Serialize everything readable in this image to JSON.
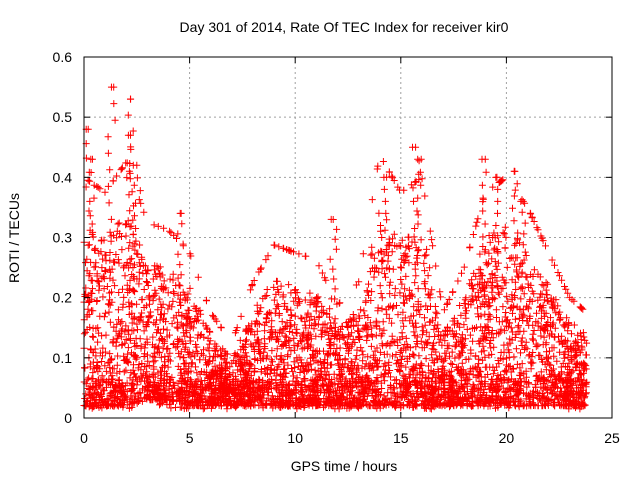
{
  "chart_data": {
    "type": "scatter",
    "title": "Day 301 of 2014, Rate Of TEC Index for receiver kir0",
    "xlabel": "GPS time / hours",
    "ylabel": "ROTI / TECUs",
    "xlim": [
      0,
      25
    ],
    "ylim": [
      0,
      0.6
    ],
    "x_ticks": [
      0,
      5,
      10,
      15,
      20,
      25
    ],
    "y_ticks": [
      0,
      0.1,
      0.2,
      0.3,
      0.4,
      0.5,
      0.6
    ],
    "x_tick_labels": [
      "0",
      "5",
      "10",
      "15",
      "20",
      "25"
    ],
    "y_tick_labels": [
      "0",
      "0.1",
      "0.2",
      "0.3",
      "0.4",
      "0.5",
      "0.6"
    ],
    "grid": true,
    "marker": "+",
    "series_color": "#ff0000",
    "x_data_range": [
      0,
      23.8
    ],
    "noted_peaks": [
      {
        "x": 0.2,
        "y": 0.48
      },
      {
        "x": 1.3,
        "y": 0.55
      },
      {
        "x": 2.2,
        "y": 0.53
      },
      {
        "x": 2.2,
        "y": 0.47
      },
      {
        "x": 0.4,
        "y": 0.43
      },
      {
        "x": 2.5,
        "y": 0.42
      },
      {
        "x": 4.6,
        "y": 0.34
      },
      {
        "x": 11.8,
        "y": 0.33
      },
      {
        "x": 14.2,
        "y": 0.4
      },
      {
        "x": 15.7,
        "y": 0.45
      },
      {
        "x": 15.8,
        "y": 0.43
      },
      {
        "x": 19.0,
        "y": 0.43
      },
      {
        "x": 19.5,
        "y": 0.4
      },
      {
        "x": 20.4,
        "y": 0.41
      },
      {
        "x": 20.8,
        "y": 0.36
      }
    ],
    "envelope": [
      {
        "x": 0.0,
        "upper": 0.32,
        "lower": 0.02
      },
      {
        "x": 1.0,
        "upper": 0.3,
        "lower": 0.02
      },
      {
        "x": 2.0,
        "upper": 0.34,
        "lower": 0.02
      },
      {
        "x": 3.0,
        "upper": 0.26,
        "lower": 0.03
      },
      {
        "x": 4.0,
        "upper": 0.25,
        "lower": 0.03
      },
      {
        "x": 5.0,
        "upper": 0.22,
        "lower": 0.02
      },
      {
        "x": 6.0,
        "upper": 0.14,
        "lower": 0.02
      },
      {
        "x": 7.0,
        "upper": 0.1,
        "lower": 0.02
      },
      {
        "x": 8.0,
        "upper": 0.18,
        "lower": 0.02
      },
      {
        "x": 9.0,
        "upper": 0.23,
        "lower": 0.02
      },
      {
        "x": 10.0,
        "upper": 0.22,
        "lower": 0.02
      },
      {
        "x": 11.0,
        "upper": 0.21,
        "lower": 0.02
      },
      {
        "x": 12.0,
        "upper": 0.15,
        "lower": 0.02
      },
      {
        "x": 13.0,
        "upper": 0.18,
        "lower": 0.02
      },
      {
        "x": 14.0,
        "upper": 0.35,
        "lower": 0.02
      },
      {
        "x": 15.0,
        "upper": 0.3,
        "lower": 0.02
      },
      {
        "x": 16.0,
        "upper": 0.32,
        "lower": 0.02
      },
      {
        "x": 17.0,
        "upper": 0.14,
        "lower": 0.02
      },
      {
        "x": 18.0,
        "upper": 0.2,
        "lower": 0.02
      },
      {
        "x": 19.0,
        "upper": 0.3,
        "lower": 0.02
      },
      {
        "x": 20.0,
        "upper": 0.32,
        "lower": 0.02
      },
      {
        "x": 21.0,
        "upper": 0.28,
        "lower": 0.02
      },
      {
        "x": 22.0,
        "upper": 0.22,
        "lower": 0.02
      },
      {
        "x": 23.0,
        "upper": 0.16,
        "lower": 0.02
      },
      {
        "x": 23.8,
        "upper": 0.14,
        "lower": 0.02
      }
    ]
  }
}
